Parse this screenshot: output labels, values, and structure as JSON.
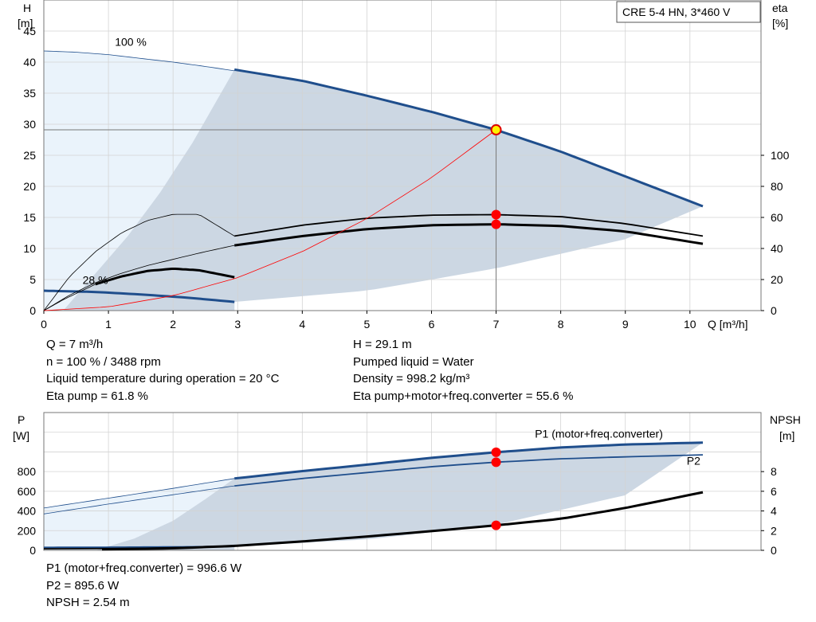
{
  "title_box": "CRE 5-4 HN, 3*460 V",
  "colors": {
    "curve_blue": "#1f4e8c",
    "envelope_fill": "#ccd7e3",
    "light_fill": "#eaf3fb",
    "grid": "#d3d3d3",
    "duty_point": "#ff0000",
    "system_curve": "#ff0000",
    "duty_marker_fill": "#fff200"
  },
  "chart_data": [
    {
      "type": "line",
      "name": "head-efficiency",
      "xlabel": "Q [m³/h]",
      "ylabel_left_line1": "H",
      "ylabel_left_line2": "[m]",
      "ylabel_right_line1": "eta",
      "ylabel_right_line2": "[%]",
      "xlim": [
        0,
        11.1
      ],
      "ylim_left": [
        0,
        50
      ],
      "ylim_right": [
        0,
        200
      ],
      "x_ticks": [
        "0",
        "1",
        "2",
        "3",
        "4",
        "5",
        "6",
        "7",
        "8",
        "9",
        "10"
      ],
      "y_left_ticks": [
        "0",
        "5",
        "10",
        "15",
        "20",
        "25",
        "30",
        "35",
        "40",
        "45"
      ],
      "y_right_ticks": [
        "0",
        "20",
        "40",
        "60",
        "80",
        "100"
      ],
      "annotations": [
        {
          "text": "100 %",
          "x": 1.1,
          "y": 42.6
        },
        {
          "text": "28 %",
          "x": 0.6,
          "y": 4.3
        }
      ],
      "series": [
        {
          "role": "head_max",
          "x": [
            0,
            0.5,
            1,
            1.5,
            2,
            2.5,
            2.95
          ],
          "y": [
            41.8,
            41.6,
            41.2,
            40.6,
            40.0,
            39.3,
            38.6
          ],
          "style": "thin"
        },
        {
          "role": "head_max",
          "x": [
            2.95,
            4,
            5,
            6,
            7,
            8,
            9,
            10.2
          ],
          "y": [
            38.8,
            37.0,
            34.6,
            32.0,
            29.1,
            25.6,
            21.6,
            16.8
          ],
          "style": "thick"
        },
        {
          "role": "head_min",
          "x": [
            0,
            0.8,
            1.5,
            2.2,
            2.95
          ],
          "y": [
            3.2,
            3.0,
            2.6,
            2.1,
            1.4
          ],
          "style": "thick"
        },
        {
          "role": "eta_pump",
          "axis": "right",
          "x": [
            0,
            0.4,
            0.8,
            1.2,
            1.6,
            2.0,
            2.4,
            2.95
          ],
          "y": [
            0,
            22,
            38,
            50,
            58,
            62,
            62,
            48
          ],
          "style": "thin"
        },
        {
          "role": "eta_pump",
          "axis": "right",
          "x": [
            2.95,
            4,
            5,
            6,
            7,
            8,
            9,
            10.2
          ],
          "y": [
            48,
            55,
            59.5,
            61.5,
            61.8,
            60.5,
            56,
            48
          ],
          "style": "normal"
        },
        {
          "role": "eta_total",
          "axis": "right",
          "x": [
            0,
            0.4,
            0.8,
            1.2,
            1.6,
            2.0,
            2.4,
            2.95
          ],
          "y": [
            0,
            10,
            18,
            24,
            29,
            33,
            37,
            42
          ],
          "style": "thin"
        },
        {
          "role": "eta_total",
          "axis": "right",
          "x": [
            2.95,
            4,
            5,
            6,
            7,
            8,
            9,
            10.2
          ],
          "y": [
            42,
            48,
            52.5,
            55,
            55.6,
            54.5,
            51,
            43
          ],
          "style": "thick"
        },
        {
          "role": "eta_total_min",
          "axis": "right",
          "x": [
            0,
            0.3,
            0.6,
            0.8
          ],
          "y": [
            0,
            7,
            13,
            17
          ],
          "style": "thin"
        },
        {
          "role": "eta_total_min",
          "axis": "right",
          "x": [
            0.8,
            1.2,
            1.6,
            2.0,
            2.4,
            2.95
          ],
          "y": [
            17,
            22,
            25.5,
            27,
            26,
            21.5
          ],
          "style": "thick"
        },
        {
          "role": "system_curve",
          "x": [
            0,
            1,
            2,
            3,
            4,
            5,
            6,
            7
          ],
          "y": [
            0,
            0.6,
            2.4,
            5.3,
            9.5,
            14.8,
            21.4,
            29.1
          ],
          "style": "red"
        }
      ],
      "duty_points": [
        {
          "x": 7,
          "y": 29.1,
          "kind": "head"
        },
        {
          "x": 7,
          "y": 61.8,
          "axis": "right",
          "kind": "eta"
        },
        {
          "x": 7,
          "y": 55.6,
          "axis": "right",
          "kind": "eta"
        }
      ]
    },
    {
      "type": "line",
      "name": "power-npsh",
      "ylabel_left_line1": "P",
      "ylabel_left_line2": "[W]",
      "ylabel_right_line1": "NPSH",
      "ylabel_right_line2": "[m]",
      "xlim": [
        0,
        11.1
      ],
      "ylim_left": [
        0,
        1400
      ],
      "ylim_right": [
        0,
        14
      ],
      "y_left_ticks": [
        "0",
        "200",
        "400",
        "600",
        "800"
      ],
      "y_right_ticks": [
        "0",
        "2",
        "4",
        "6",
        "8"
      ],
      "series": [
        {
          "name": "P1 (motor+freq.converter)",
          "x": [
            0,
            1,
            2,
            2.95
          ],
          "y": [
            430,
            530,
            630,
            730
          ],
          "style": "thin"
        },
        {
          "name": "P1 (motor+freq.converter)",
          "x": [
            2.95,
            4,
            5,
            6,
            7,
            8,
            9,
            10.2
          ],
          "y": [
            730,
            805,
            870,
            940,
            996.6,
            1045,
            1075,
            1095
          ],
          "style": "thick"
        },
        {
          "name": "P2",
          "x": [
            0,
            1,
            2,
            2.95
          ],
          "y": [
            370,
            470,
            565,
            655
          ],
          "style": "thin"
        },
        {
          "name": "P2",
          "x": [
            2.95,
            4,
            5,
            6,
            7,
            8,
            9,
            10.2
          ],
          "y": [
            655,
            730,
            790,
            850,
            895.6,
            930,
            950,
            970
          ],
          "style": "normal"
        },
        {
          "role": "power_min",
          "x": [
            0,
            1,
            2,
            2.95
          ],
          "y": [
            30,
            32,
            35,
            40
          ],
          "style": "normal"
        },
        {
          "role": "npsh",
          "axis": "right",
          "x": [
            0.9,
            2,
            2.95,
            4,
            5,
            6,
            7,
            8,
            9,
            10.2
          ],
          "y": [
            0.1,
            0.2,
            0.45,
            0.9,
            1.4,
            1.95,
            2.54,
            3.2,
            4.3,
            5.9
          ],
          "style": "thick"
        }
      ],
      "series_labels": [
        {
          "text": "P1 (motor+freq.converter)",
          "x": 7.6,
          "y": 1145
        },
        {
          "text": "P2",
          "x": 9.95,
          "y": 870
        }
      ],
      "duty_points": [
        {
          "x": 7,
          "y": 996.6
        },
        {
          "x": 7,
          "y": 895.6
        },
        {
          "x": 7,
          "y": 2.54,
          "axis": "right"
        }
      ]
    }
  ],
  "info_top_left": [
    "Q = 7 m³/h",
    "n = 100 % / 3488 rpm",
    "Liquid temperature during operation = 20 °C",
    "Eta pump = 61.8 %"
  ],
  "info_top_right": [
    "H = 29.1 m",
    "Pumped liquid = Water",
    "Density = 998.2 kg/m³",
    "Eta pump+motor+freq.converter = 55.6 %"
  ],
  "info_bottom": [
    "P1 (motor+freq.converter) = 996.6 W",
    "P2 = 895.6 W",
    "NPSH = 2.54 m"
  ]
}
